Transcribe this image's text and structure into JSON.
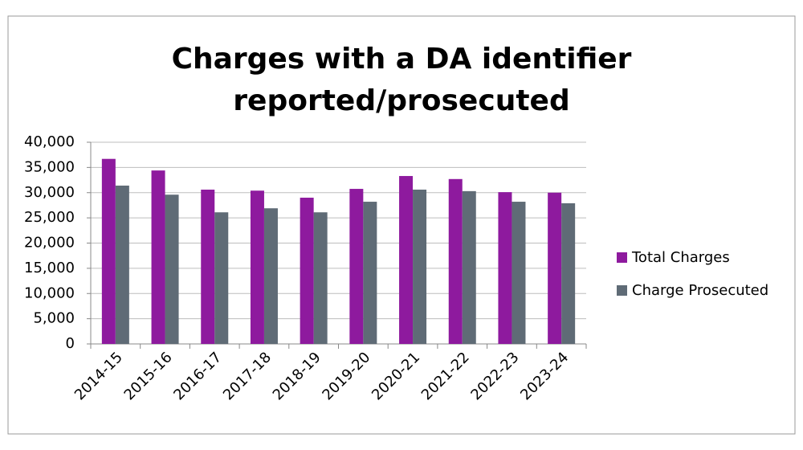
{
  "chart_data": {
    "type": "bar",
    "title": "Charges with a DA identifier reported/prosecuted",
    "categories": [
      "2014-15",
      "2015-16",
      "2016-17",
      "2017-18",
      "2018-19",
      "2019-20",
      "2020-21",
      "2021-22",
      "2022-23",
      "2023-24"
    ],
    "series": [
      {
        "name": "Total Charges",
        "color": "#8e1a9e",
        "values": [
          36700,
          34400,
          30600,
          30400,
          29000,
          30750,
          33300,
          32700,
          30100,
          30000
        ]
      },
      {
        "name": "Charge Prosecuted",
        "color": "#5f6b76",
        "values": [
          31400,
          29600,
          26100,
          26900,
          26100,
          28200,
          30600,
          30300,
          28200,
          27900
        ]
      }
    ],
    "ylim": [
      0,
      40000
    ],
    "yticks": [
      0,
      {
        "value": 5000,
        "label": "5,000"
      },
      {
        "value": 10000,
        "label": "10,000"
      },
      {
        "value": 15000,
        "label": "15,000"
      },
      {
        "value": 20000,
        "label": "20,000"
      },
      {
        "value": 25000,
        "label": "25,000"
      },
      {
        "value": 30000,
        "label": "30,000"
      },
      {
        "value": 35000,
        "label": "35,000"
      },
      {
        "value": 40000,
        "label": "40,000"
      }
    ],
    "grid": true,
    "legend": "right"
  }
}
